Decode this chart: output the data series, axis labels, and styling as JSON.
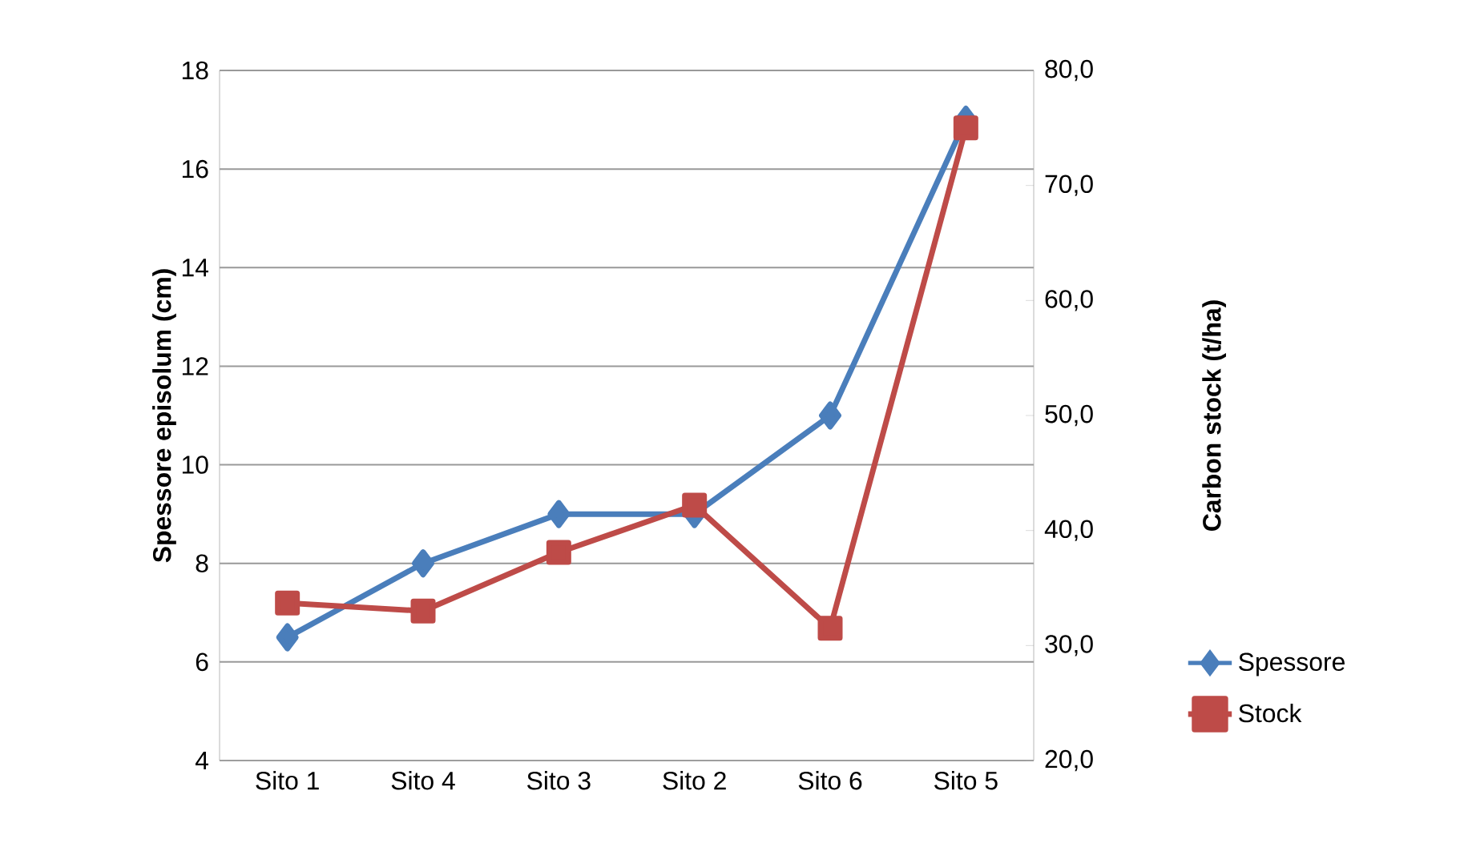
{
  "chart_data": {
    "type": "line",
    "categories": [
      "Sito 1",
      "Sito 4",
      "Sito 3",
      "Sito 2",
      "Sito 6",
      "Sito 5"
    ],
    "ylabel": "Spessore episolum (cm)",
    "y2label": "Carbon stock (t/ha)",
    "series": [
      {
        "name": "Spessore",
        "color": "#4a7ebb",
        "marker": "diamond",
        "values": [
          6.5,
          8,
          9,
          9,
          11,
          17
        ]
      },
      {
        "name": "Stock",
        "color": "#be4b48",
        "marker": "square",
        "axis": "y2",
        "values": [
          33.7,
          33.0,
          38.1,
          42.2,
          31.5,
          75.0
        ]
      }
    ],
    "ylim": [
      4,
      18
    ],
    "yticks": [
      4,
      6,
      8,
      10,
      12,
      14,
      16,
      18
    ],
    "y2lim": [
      20,
      80
    ],
    "y2ticks": [
      {
        "value": 20,
        "label": "20,0"
      },
      {
        "value": 30,
        "label": "30,0"
      },
      {
        "value": 40,
        "label": "40,0"
      },
      {
        "value": 50,
        "label": "50,0"
      },
      {
        "value": 60,
        "label": "60,0"
      },
      {
        "value": 70,
        "label": "70,0"
      },
      {
        "value": 80,
        "label": "80,0"
      }
    ],
    "grid": "y",
    "legend": "right"
  }
}
